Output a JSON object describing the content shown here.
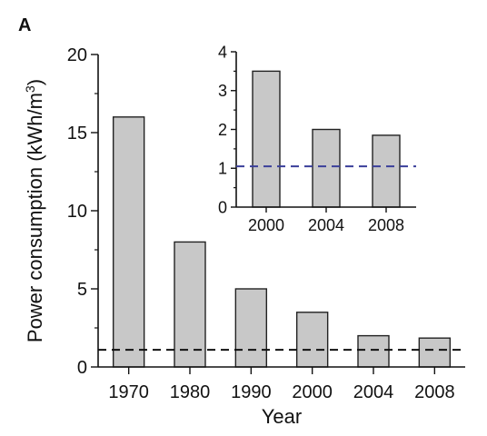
{
  "panel_label": "A",
  "chart_data": [
    {
      "type": "bar",
      "title": "",
      "xlabel": "Year",
      "ylabel": "Power consumption (kWh/m³)",
      "ylabel_parts": {
        "before": "Power consumption (kWh/m",
        "sup": "3",
        "after": ")"
      },
      "categories": [
        "1970",
        "1980",
        "1990",
        "2000",
        "2004",
        "2008"
      ],
      "values": [
        16,
        8,
        5,
        3.5,
        2,
        1.85
      ],
      "ylim": [
        0,
        20
      ],
      "yticks": [
        0,
        5,
        10,
        15,
        20
      ],
      "reference_line": {
        "y": 1.1,
        "style": "dashed",
        "color": "#111111"
      },
      "bar_color": "#c8c8c8",
      "grid": false
    },
    {
      "type": "bar",
      "title": "",
      "xlabel": "",
      "ylabel": "",
      "categories": [
        "2000",
        "2004",
        "2008"
      ],
      "values": [
        3.5,
        2,
        1.85
      ],
      "ylim": [
        0,
        4
      ],
      "yticks": [
        0,
        1,
        2,
        3,
        4
      ],
      "reference_line": {
        "y": 1.05,
        "style": "dashed",
        "color": "#3a3f9a"
      },
      "bar_color": "#c8c8c8",
      "grid": false
    }
  ]
}
